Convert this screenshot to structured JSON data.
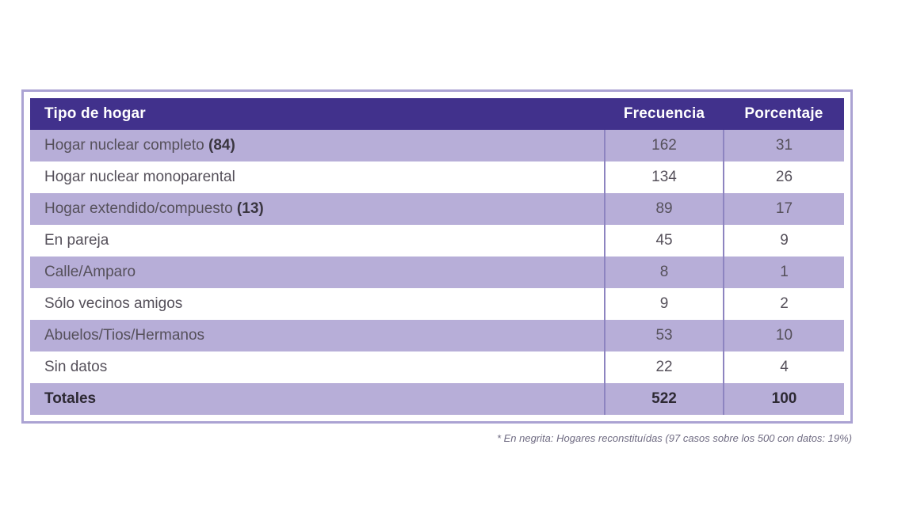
{
  "table": {
    "header": {
      "col1": "Tipo de hogar",
      "col2": "Frecuencia",
      "col3": "Porcentaje"
    },
    "rows": [
      {
        "label": "Hogar nuclear completo",
        "label_suffix": "(84)",
        "frecuencia": "162",
        "porcentaje": "31",
        "bold": false
      },
      {
        "label": "Hogar nuclear monoparental",
        "label_suffix": "",
        "frecuencia": "134",
        "porcentaje": "26",
        "bold": false
      },
      {
        "label": "Hogar extendido/compuesto",
        "label_suffix": "(13)",
        "frecuencia": "89",
        "porcentaje": "17",
        "bold": false
      },
      {
        "label": "En pareja",
        "label_suffix": "",
        "frecuencia": "45",
        "porcentaje": "9",
        "bold": false
      },
      {
        "label": "Calle/Amparo",
        "label_suffix": "",
        "frecuencia": "8",
        "porcentaje": "1",
        "bold": false
      },
      {
        "label": "Sólo vecinos amigos",
        "label_suffix": "",
        "frecuencia": "9",
        "porcentaje": "2",
        "bold": false
      },
      {
        "label": "Abuelos/Tios/Hermanos",
        "label_suffix": "",
        "frecuencia": "53",
        "porcentaje": "10",
        "bold": false
      },
      {
        "label": "Sin datos",
        "label_suffix": "",
        "frecuencia": "22",
        "porcentaje": "4",
        "bold": false
      },
      {
        "label": "Totales",
        "label_suffix": "",
        "frecuencia": "522",
        "porcentaje": "100",
        "bold": true
      }
    ],
    "footnote": "* En negrita: Hogares reconstituídas (97 casos sobre los 500 con datos: 19%)"
  },
  "colors": {
    "header_background": "#41318c",
    "header_text": "#ffffff",
    "row_lavender": "#b7aed8",
    "row_white": "#ffffff",
    "outer_border": "#aba3d3",
    "column_separator": "#8d84c0",
    "body_text": "#55505a",
    "bold_text": "#2d2933",
    "footnote_text": "#6f6b82"
  },
  "chart_data": {
    "type": "table",
    "title": "",
    "columns": [
      "Tipo de hogar",
      "Frecuencia",
      "Porcentaje"
    ],
    "rows": [
      [
        "Hogar nuclear completo (84)",
        162,
        31
      ],
      [
        "Hogar nuclear monoparental",
        134,
        26
      ],
      [
        "Hogar extendido/compuesto (13)",
        89,
        17
      ],
      [
        "En pareja",
        45,
        9
      ],
      [
        "Calle/Amparo",
        8,
        1
      ],
      [
        "Sólo vecinos amigos",
        9,
        2
      ],
      [
        "Abuelos/Tios/Hermanos",
        53,
        10
      ],
      [
        "Sin datos",
        22,
        4
      ],
      [
        "Totales",
        522,
        100
      ]
    ],
    "footnote": "* En negrita: Hogares reconstituídas (97 casos sobre los 500 con datos: 19%)",
    "layout": {
      "alternating_row_colors": true,
      "totals_row_bold": true,
      "bold_label_suffixes": [
        "(84)",
        "(13)"
      ]
    }
  }
}
